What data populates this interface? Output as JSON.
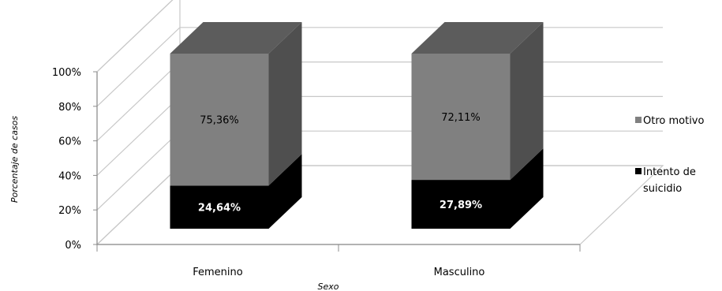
{
  "chart_data": {
    "type": "bar",
    "stacked": true,
    "percent_stacked": true,
    "three_d": true,
    "categories": [
      "Femenino",
      "Masculino"
    ],
    "series": [
      {
        "name": "Intento de suicidio",
        "values": [
          24.64,
          27.89
        ],
        "labels": [
          "24,64%",
          "27,89%"
        ],
        "color": "#000000",
        "label_color": "#ffffff"
      },
      {
        "name": "Otro motivo",
        "values": [
          75.36,
          72.11
        ],
        "labels": [
          "75,36%",
          "72,11%"
        ],
        "color": "#808080",
        "label_color": "#000000"
      }
    ],
    "xlabel": "Sexo",
    "ylabel": "Porcentaje de casos",
    "ylim": [
      0,
      100
    ],
    "yticks": [
      "0%",
      "20%",
      "40%",
      "60%",
      "80%",
      "100%"
    ],
    "grid": true,
    "legend_position": "right"
  }
}
